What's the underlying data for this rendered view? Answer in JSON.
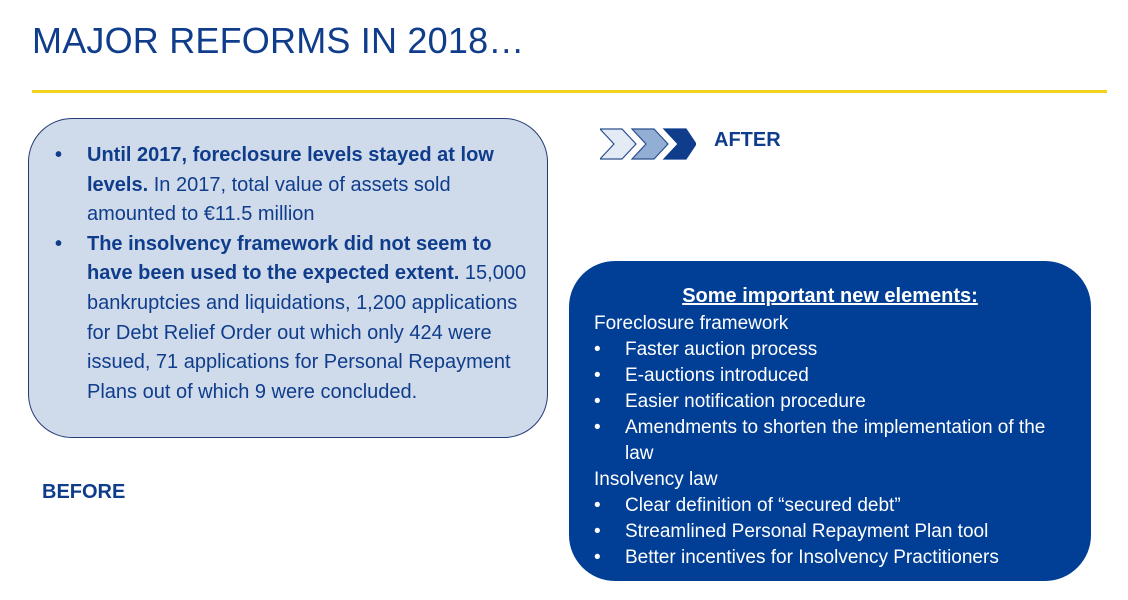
{
  "title": "MAJOR REFORMS IN 2018…",
  "before": {
    "label": "BEFORE",
    "bullets": [
      {
        "bold": "Until 2017, foreclosure levels stayed at low levels.",
        "text": " In 2017, total value of assets sold amounted to €11.5 million"
      },
      {
        "bold": "The insolvency framework did not seem to have been used to the expected extent.",
        "text": " 15,000 bankruptcies and liquidations, 1,200 applications for Debt Relief Order out which only 424 were issued, 71 applications for Personal Repayment Plans out of which 9 were concluded."
      }
    ]
  },
  "after": {
    "label": "AFTER",
    "heading": "Some important new elements:",
    "foreclosure": {
      "title": "Foreclosure framework",
      "items": [
        "Faster auction process",
        "E-auctions introduced",
        "Easier notification procedure",
        "Amendments to shorten the implementation of the law"
      ]
    },
    "insolvency": {
      "title": "Insolvency law",
      "items": [
        "Clear definition of “secured debt”",
        "Streamlined Personal Repayment Plan tool",
        "Better incentives for Insolvency Practitioners"
      ]
    }
  },
  "colors": {
    "title": "#0f3d8c",
    "accent_rule": "#f2d21a",
    "before_box": "#cfdbea",
    "after_box": "#003f95"
  },
  "icons": {
    "chevrons": "triple-chevron-right-icon",
    "bullet": "bullet-dot-icon"
  }
}
